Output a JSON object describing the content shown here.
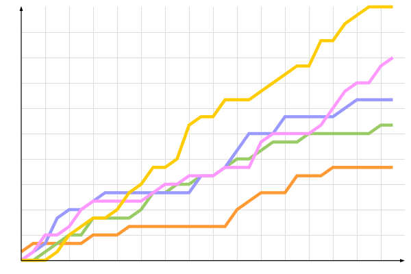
{
  "chart_data": {
    "type": "line",
    "title": "",
    "xlabel": "",
    "ylabel": "",
    "x": [
      0,
      0.5,
      1,
      1.5,
      2,
      2.5,
      3,
      3.5,
      4,
      4.5,
      5,
      5.5,
      6,
      6.5,
      7,
      7.5,
      8,
      8.5,
      9,
      9.5,
      10,
      10.5,
      11,
      11.5,
      12,
      12.5,
      13,
      13.5,
      14,
      14.5,
      15,
      15.5
    ],
    "xlim": [
      0,
      16
    ],
    "ylim": [
      0,
      30
    ],
    "x_grid_step": 1,
    "y_grid_step": 3,
    "grid": true,
    "tick_labels": false,
    "legend": "none",
    "series": [
      {
        "color": "#ff9933",
        "values": [
          1,
          2,
          2,
          2,
          2,
          2,
          3,
          3,
          3,
          4,
          4,
          4,
          4,
          4,
          4,
          4,
          4,
          4,
          6,
          7,
          8,
          8,
          8,
          10,
          10,
          10,
          11,
          11,
          11,
          11,
          11,
          11
        ]
      },
      {
        "color": "#99cc66",
        "values": [
          0,
          0,
          1,
          2,
          3,
          3,
          5,
          5,
          5,
          5,
          6,
          8,
          8,
          9,
          9,
          10,
          10,
          11,
          12,
          12,
          13,
          14,
          14,
          14,
          15,
          15,
          15,
          15,
          15,
          15,
          16,
          16
        ]
      },
      {
        "color": "#9999ff",
        "values": [
          0,
          1,
          2,
          5,
          6,
          6,
          7,
          8,
          8,
          8,
          8,
          8,
          8,
          8,
          8,
          10,
          10,
          11,
          13,
          15,
          15,
          15,
          17,
          17,
          17,
          17,
          17,
          18,
          19,
          19,
          19,
          19
        ]
      },
      {
        "color": "#ff99ff",
        "values": [
          0,
          1,
          3,
          3,
          4,
          6,
          7,
          7,
          7,
          7,
          7,
          8,
          9,
          9,
          10,
          10,
          10,
          11,
          11,
          11,
          14,
          15,
          15,
          15,
          15,
          16,
          18,
          20,
          21,
          21,
          23,
          24
        ]
      },
      {
        "color": "#ffcc00",
        "values": [
          0,
          0,
          0,
          1,
          3,
          4,
          5,
          5,
          6,
          8,
          9,
          11,
          11,
          12,
          16,
          17,
          17,
          19,
          19,
          19,
          20,
          21,
          22,
          23,
          23,
          26,
          26,
          28,
          29,
          30,
          30,
          30
        ]
      }
    ]
  },
  "colors": {
    "grid": "#dddddd",
    "axis": "#000000"
  }
}
